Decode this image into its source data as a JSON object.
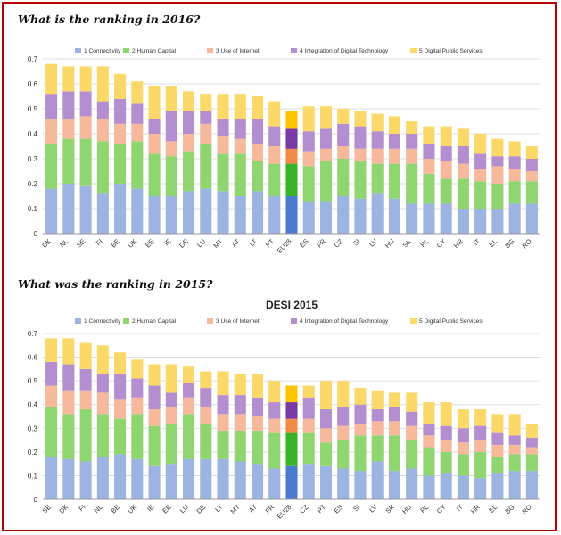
{
  "colors": {
    "frame": "#b90000",
    "connectivity": "#9db3e2",
    "human_capital": "#8fd670",
    "use_of_internet": "#f7b99b",
    "integration": "#b48fd0",
    "digital_public": "#fbd968",
    "eu28_connectivity": "#4a7bd0",
    "eu28_human_capital": "#38b32a",
    "eu28_use_of_internet": "#f08a44",
    "eu28_integration": "#7a3aa6",
    "eu28_digital_public": "#ffc300"
  },
  "chart_data": [
    {
      "type": "bar",
      "stacked": true,
      "heading": "What is the ranking in 2016?",
      "title": "",
      "ylim": [
        0,
        0.7
      ],
      "yticks": [
        "0",
        "0.1",
        "0.2",
        "0.3",
        "0.4",
        "0.5",
        "0.6",
        "0.7"
      ],
      "grid": true,
      "legend_position": "top",
      "highlight": "EU28",
      "categories": [
        "DK",
        "NL",
        "SE",
        "FI",
        "BE",
        "UK",
        "EE",
        "IE",
        "DE",
        "LU",
        "MT",
        "AT",
        "LT",
        "PT",
        "EU28",
        "ES",
        "FR",
        "CZ",
        "SI",
        "LV",
        "HU",
        "SK",
        "PL",
        "CY",
        "HR",
        "IT",
        "EL",
        "BG",
        "RO"
      ],
      "series": [
        {
          "name": "1 Connectivity",
          "values": [
            0.18,
            0.2,
            0.19,
            0.16,
            0.2,
            0.18,
            0.15,
            0.15,
            0.17,
            0.18,
            0.17,
            0.15,
            0.17,
            0.15,
            0.15,
            0.13,
            0.13,
            0.15,
            0.14,
            0.16,
            0.14,
            0.12,
            0.12,
            0.12,
            0.1,
            0.1,
            0.1,
            0.12,
            0.12
          ]
        },
        {
          "name": "2 Human Capital",
          "values": [
            0.18,
            0.18,
            0.19,
            0.21,
            0.16,
            0.19,
            0.17,
            0.16,
            0.16,
            0.18,
            0.15,
            0.17,
            0.12,
            0.13,
            0.13,
            0.14,
            0.16,
            0.15,
            0.15,
            0.12,
            0.14,
            0.16,
            0.12,
            0.1,
            0.12,
            0.11,
            0.1,
            0.09,
            0.09
          ]
        },
        {
          "name": "3 Use of Internet",
          "values": [
            0.1,
            0.08,
            0.09,
            0.09,
            0.08,
            0.07,
            0.08,
            0.06,
            0.07,
            0.08,
            0.07,
            0.06,
            0.07,
            0.07,
            0.06,
            0.06,
            0.05,
            0.05,
            0.05,
            0.06,
            0.06,
            0.06,
            0.06,
            0.07,
            0.06,
            0.05,
            0.07,
            0.05,
            0.04
          ]
        },
        {
          "name": "4 Integration of Digital Technology",
          "values": [
            0.1,
            0.11,
            0.1,
            0.07,
            0.1,
            0.08,
            0.06,
            0.12,
            0.09,
            0.05,
            0.07,
            0.08,
            0.1,
            0.08,
            0.08,
            0.08,
            0.08,
            0.09,
            0.09,
            0.07,
            0.06,
            0.06,
            0.06,
            0.06,
            0.07,
            0.06,
            0.04,
            0.05,
            0.05
          ]
        },
        {
          "name": "5 Digital Public Services",
          "values": [
            0.12,
            0.1,
            0.1,
            0.14,
            0.1,
            0.09,
            0.13,
            0.1,
            0.08,
            0.07,
            0.1,
            0.1,
            0.09,
            0.1,
            0.07,
            0.1,
            0.09,
            0.06,
            0.06,
            0.07,
            0.07,
            0.05,
            0.07,
            0.08,
            0.07,
            0.08,
            0.07,
            0.06,
            0.05
          ]
        }
      ]
    },
    {
      "type": "bar",
      "stacked": true,
      "heading": "What was the ranking in 2015?",
      "title": "DESI 2015",
      "ylim": [
        0,
        0.7
      ],
      "yticks": [
        "0",
        "0.1",
        "0.2",
        "0.3",
        "0.4",
        "0.5",
        "0.6",
        "0.7"
      ],
      "grid": true,
      "legend_position": "top",
      "highlight": "EU28",
      "categories": [
        "SE",
        "DK",
        "FI",
        "NL",
        "BE",
        "UK",
        "IE",
        "EE",
        "LU",
        "DE",
        "LT",
        "MT",
        "AT",
        "FR",
        "EU28",
        "CZ",
        "PT",
        "ES",
        "SI",
        "LV",
        "SK",
        "HU",
        "PL",
        "CY",
        "IT",
        "HR",
        "EL",
        "BG",
        "RO"
      ],
      "series": [
        {
          "name": "1 Connectivity",
          "values": [
            0.18,
            0.17,
            0.16,
            0.18,
            0.19,
            0.17,
            0.14,
            0.15,
            0.17,
            0.17,
            0.17,
            0.16,
            0.15,
            0.13,
            0.14,
            0.15,
            0.14,
            0.13,
            0.12,
            0.16,
            0.12,
            0.13,
            0.1,
            0.11,
            0.1,
            0.09,
            0.11,
            0.12,
            0.12
          ]
        },
        {
          "name": "2 Human Capital",
          "values": [
            0.21,
            0.19,
            0.22,
            0.18,
            0.15,
            0.19,
            0.17,
            0.17,
            0.19,
            0.15,
            0.12,
            0.13,
            0.14,
            0.15,
            0.14,
            0.13,
            0.1,
            0.12,
            0.15,
            0.11,
            0.15,
            0.12,
            0.12,
            0.09,
            0.09,
            0.11,
            0.07,
            0.07,
            0.07
          ]
        },
        {
          "name": "3 Use of Internet",
          "values": [
            0.09,
            0.1,
            0.08,
            0.09,
            0.08,
            0.07,
            0.07,
            0.07,
            0.07,
            0.07,
            0.07,
            0.07,
            0.06,
            0.06,
            0.06,
            0.06,
            0.06,
            0.06,
            0.05,
            0.06,
            0.06,
            0.06,
            0.05,
            0.05,
            0.05,
            0.05,
            0.05,
            0.04,
            0.03
          ]
        },
        {
          "name": "4 Integration of Digital Technology",
          "values": [
            0.1,
            0.11,
            0.09,
            0.08,
            0.11,
            0.08,
            0.1,
            0.06,
            0.06,
            0.08,
            0.08,
            0.08,
            0.08,
            0.07,
            0.07,
            0.09,
            0.08,
            0.08,
            0.08,
            0.05,
            0.06,
            0.06,
            0.05,
            0.06,
            0.06,
            0.06,
            0.05,
            0.04,
            0.04
          ]
        },
        {
          "name": "5 Digital Public Services",
          "values": [
            0.1,
            0.11,
            0.11,
            0.12,
            0.09,
            0.08,
            0.09,
            0.12,
            0.07,
            0.07,
            0.1,
            0.09,
            0.1,
            0.09,
            0.07,
            0.05,
            0.12,
            0.11,
            0.07,
            0.08,
            0.06,
            0.08,
            0.09,
            0.1,
            0.08,
            0.07,
            0.08,
            0.09,
            0.06
          ]
        }
      ]
    }
  ]
}
